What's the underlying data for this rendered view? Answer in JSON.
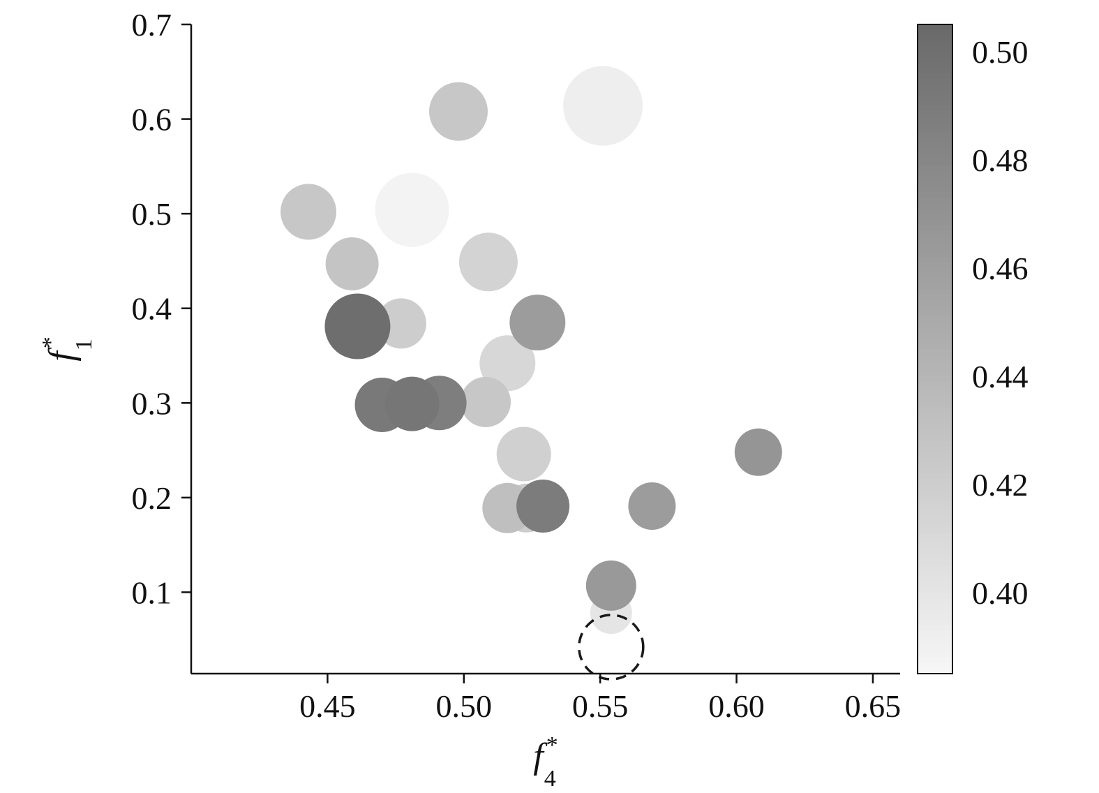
{
  "chart_data": {
    "type": "scatter",
    "title": "",
    "xlabel": {
      "base": "f",
      "sub": "4",
      "sup": "*"
    },
    "ylabel": {
      "base": "f",
      "sub": "1",
      "sup": "*"
    },
    "xlim": [
      0.4,
      0.66
    ],
    "ylim": [
      0.014,
      0.7
    ],
    "grid": false,
    "x_ticks": [
      {
        "value": 0.45,
        "label": "0.45"
      },
      {
        "value": 0.5,
        "label": "0.50"
      },
      {
        "value": 0.55,
        "label": "0.55"
      },
      {
        "value": 0.6,
        "label": "0.60"
      },
      {
        "value": 0.65,
        "label": "0.65"
      }
    ],
    "y_ticks": [
      {
        "value": 0.1,
        "label": "0.1"
      },
      {
        "value": 0.2,
        "label": "0.2"
      },
      {
        "value": 0.3,
        "label": "0.3"
      },
      {
        "value": 0.4,
        "label": "0.4"
      },
      {
        "value": 0.5,
        "label": "0.5"
      },
      {
        "value": 0.6,
        "label": "0.6"
      },
      {
        "value": 0.7,
        "label": "0.7"
      }
    ],
    "colorbar": {
      "position": "right",
      "cmin": 0.385,
      "cmax": 0.505,
      "dark_gray": 106,
      "light_gray": 246,
      "ticks": [
        {
          "value": 0.5,
          "label": "0.50"
        },
        {
          "value": 0.48,
          "label": "0.48"
        },
        {
          "value": 0.46,
          "label": "0.46"
        },
        {
          "value": 0.44,
          "label": "0.44"
        },
        {
          "value": 0.42,
          "label": "0.42"
        },
        {
          "value": 0.4,
          "label": "0.40"
        }
      ]
    },
    "points": [
      {
        "x": 0.498,
        "y": 0.608,
        "r": 42,
        "c": 0.425
      },
      {
        "x": 0.551,
        "y": 0.614,
        "r": 57,
        "c": 0.392
      },
      {
        "x": 0.443,
        "y": 0.502,
        "r": 40,
        "c": 0.425
      },
      {
        "x": 0.481,
        "y": 0.504,
        "r": 53,
        "c": 0.388
      },
      {
        "x": 0.459,
        "y": 0.447,
        "r": 38,
        "c": 0.428
      },
      {
        "x": 0.509,
        "y": 0.449,
        "r": 42,
        "c": 0.415
      },
      {
        "x": 0.461,
        "y": 0.381,
        "r": 47,
        "c": 0.502
      },
      {
        "x": 0.477,
        "y": 0.384,
        "r": 36,
        "c": 0.42
      },
      {
        "x": 0.527,
        "y": 0.385,
        "r": 40,
        "c": 0.462
      },
      {
        "x": 0.516,
        "y": 0.342,
        "r": 40,
        "c": 0.412
      },
      {
        "x": 0.47,
        "y": 0.298,
        "r": 39,
        "c": 0.492
      },
      {
        "x": 0.481,
        "y": 0.299,
        "r": 39,
        "c": 0.495
      },
      {
        "x": 0.491,
        "y": 0.3,
        "r": 39,
        "c": 0.488
      },
      {
        "x": 0.508,
        "y": 0.301,
        "r": 36,
        "c": 0.425
      },
      {
        "x": 0.522,
        "y": 0.246,
        "r": 39,
        "c": 0.418
      },
      {
        "x": 0.608,
        "y": 0.248,
        "r": 34,
        "c": 0.468
      },
      {
        "x": 0.516,
        "y": 0.189,
        "r": 36,
        "c": 0.432
      },
      {
        "x": 0.523,
        "y": 0.189,
        "r": 35,
        "c": 0.42
      },
      {
        "x": 0.529,
        "y": 0.191,
        "r": 38,
        "c": 0.49
      },
      {
        "x": 0.569,
        "y": 0.191,
        "r": 34,
        "c": 0.462
      },
      {
        "x": 0.554,
        "y": 0.107,
        "r": 36,
        "c": 0.465
      },
      {
        "x": 0.554,
        "y": 0.078,
        "r": 30,
        "c": 0.4
      }
    ],
    "reference_point": {
      "x": 0.554,
      "y": 0.042,
      "r": 46,
      "style": "dashed-open"
    }
  }
}
